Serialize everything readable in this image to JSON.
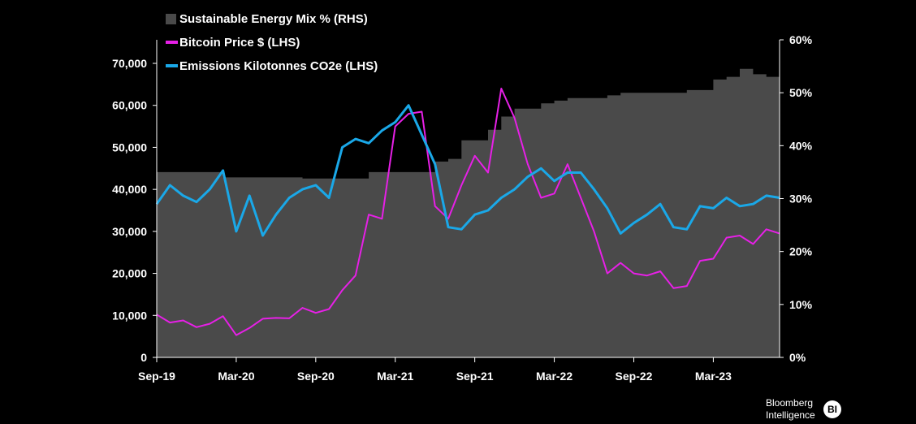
{
  "chart_data": {
    "type": "line",
    "title": "",
    "legend": [
      {
        "label": "Sustainable Energy Mix % (RHS)",
        "color": "#4a4a4a",
        "kind": "area"
      },
      {
        "label": "Bitcoin Price $ (LHS)",
        "color": "#e620e6",
        "kind": "line"
      },
      {
        "label": "Emissions Kilotonnes CO2e (LHS)",
        "color": "#1aa8e8",
        "kind": "line"
      }
    ],
    "legend_position": "top-left",
    "x_axis": {
      "start": "2019-09",
      "end": "2023-08",
      "tick_labels": [
        "Sep-19",
        "Mar-20",
        "Sep-20",
        "Mar-21",
        "Sep-21",
        "Mar-22",
        "Sep-22",
        "Mar-23"
      ]
    },
    "y_left": {
      "min": 0,
      "max": 70000,
      "tick_labels": [
        "0",
        "10,000",
        "20,000",
        "30,000",
        "40,000",
        "50,000",
        "60,000",
        "70,000"
      ]
    },
    "y_right": {
      "min": 0,
      "max": 60,
      "tick_labels": [
        "0%",
        "10%",
        "20%",
        "30%",
        "40%",
        "50%",
        "60%"
      ]
    },
    "series": [
      {
        "name": "Sustainable Energy Mix % (RHS)",
        "axis": "right",
        "color": "#4a4a4a",
        "points": [
          [
            "2019-09",
            35.0
          ],
          [
            "2019-10",
            35.0
          ],
          [
            "2019-11",
            35.0
          ],
          [
            "2019-12",
            35.0
          ],
          [
            "2020-01",
            35.0
          ],
          [
            "2020-02",
            34.0
          ],
          [
            "2020-03",
            34.0
          ],
          [
            "2020-04",
            34.0
          ],
          [
            "2020-05",
            34.0
          ],
          [
            "2020-06",
            34.0
          ],
          [
            "2020-07",
            34.0
          ],
          [
            "2020-08",
            33.8
          ],
          [
            "2020-09",
            33.8
          ],
          [
            "2020-10",
            33.8
          ],
          [
            "2020-11",
            33.8
          ],
          [
            "2020-12",
            33.8
          ],
          [
            "2021-01",
            35.0
          ],
          [
            "2021-02",
            35.0
          ],
          [
            "2021-03",
            35.0
          ],
          [
            "2021-04",
            35.0
          ],
          [
            "2021-05",
            35.0
          ],
          [
            "2021-06",
            37.0
          ],
          [
            "2021-07",
            37.5
          ],
          [
            "2021-08",
            41.0
          ],
          [
            "2021-09",
            41.0
          ],
          [
            "2021-10",
            43.0
          ],
          [
            "2021-11",
            45.5
          ],
          [
            "2021-12",
            47.0
          ],
          [
            "2022-01",
            47.0
          ],
          [
            "2022-02",
            48.0
          ],
          [
            "2022-03",
            48.5
          ],
          [
            "2022-04",
            49.0
          ],
          [
            "2022-05",
            49.0
          ],
          [
            "2022-06",
            49.0
          ],
          [
            "2022-07",
            49.5
          ],
          [
            "2022-08",
            50.0
          ],
          [
            "2022-09",
            50.0
          ],
          [
            "2022-10",
            50.0
          ],
          [
            "2022-11",
            50.0
          ],
          [
            "2022-12",
            50.0
          ],
          [
            "2023-01",
            50.5
          ],
          [
            "2023-02",
            50.5
          ],
          [
            "2023-03",
            52.5
          ],
          [
            "2023-04",
            53.0
          ],
          [
            "2023-05",
            54.5
          ],
          [
            "2023-06",
            53.5
          ],
          [
            "2023-07",
            53.0
          ],
          [
            "2023-08",
            53.0
          ]
        ]
      },
      {
        "name": "Bitcoin Price $ (LHS)",
        "axis": "left",
        "color": "#e620e6",
        "points": [
          [
            "2019-09",
            10200
          ],
          [
            "2019-10",
            8300
          ],
          [
            "2019-11",
            8800
          ],
          [
            "2019-12",
            7200
          ],
          [
            "2020-01",
            8000
          ],
          [
            "2020-02",
            9800
          ],
          [
            "2020-03",
            5300
          ],
          [
            "2020-04",
            7000
          ],
          [
            "2020-05",
            9200
          ],
          [
            "2020-06",
            9400
          ],
          [
            "2020-07",
            9300
          ],
          [
            "2020-08",
            11800
          ],
          [
            "2020-09",
            10600
          ],
          [
            "2020-10",
            11500
          ],
          [
            "2020-11",
            16000
          ],
          [
            "2020-12",
            19500
          ],
          [
            "2021-01",
            34000
          ],
          [
            "2021-02",
            33000
          ],
          [
            "2021-03",
            55000
          ],
          [
            "2021-04",
            58000
          ],
          [
            "2021-05",
            58500
          ],
          [
            "2021-06",
            36000
          ],
          [
            "2021-07",
            33000
          ],
          [
            "2021-08",
            41000
          ],
          [
            "2021-09",
            48000
          ],
          [
            "2021-10",
            44000
          ],
          [
            "2021-11",
            64000
          ],
          [
            "2021-12",
            57000
          ],
          [
            "2022-01",
            46000
          ],
          [
            "2022-02",
            38000
          ],
          [
            "2022-03",
            39000
          ],
          [
            "2022-04",
            46000
          ],
          [
            "2022-05",
            38000
          ],
          [
            "2022-06",
            30000
          ],
          [
            "2022-07",
            20000
          ],
          [
            "2022-08",
            22500
          ],
          [
            "2022-09",
            20000
          ],
          [
            "2022-10",
            19500
          ],
          [
            "2022-11",
            20500
          ],
          [
            "2022-12",
            16500
          ],
          [
            "2023-01",
            17000
          ],
          [
            "2023-02",
            23000
          ],
          [
            "2023-03",
            23500
          ],
          [
            "2023-04",
            28500
          ],
          [
            "2023-05",
            29000
          ],
          [
            "2023-06",
            27000
          ],
          [
            "2023-07",
            30500
          ],
          [
            "2023-08",
            29500
          ]
        ]
      },
      {
        "name": "Emissions Kilotonnes CO2e (LHS)",
        "axis": "left",
        "color": "#1aa8e8",
        "points": [
          [
            "2019-09",
            36500
          ],
          [
            "2019-10",
            41000
          ],
          [
            "2019-11",
            38500
          ],
          [
            "2019-12",
            37000
          ],
          [
            "2020-01",
            40000
          ],
          [
            "2020-02",
            44500
          ],
          [
            "2020-03",
            30000
          ],
          [
            "2020-04",
            38500
          ],
          [
            "2020-05",
            29000
          ],
          [
            "2020-06",
            34000
          ],
          [
            "2020-07",
            38000
          ],
          [
            "2020-08",
            40000
          ],
          [
            "2020-09",
            41000
          ],
          [
            "2020-10",
            38000
          ],
          [
            "2020-11",
            50000
          ],
          [
            "2020-12",
            52000
          ],
          [
            "2021-01",
            51000
          ],
          [
            "2021-02",
            54000
          ],
          [
            "2021-03",
            56000
          ],
          [
            "2021-04",
            60000
          ],
          [
            "2021-05",
            53000
          ],
          [
            "2021-06",
            46000
          ],
          [
            "2021-07",
            31000
          ],
          [
            "2021-08",
            30500
          ],
          [
            "2021-09",
            34000
          ],
          [
            "2021-10",
            35000
          ],
          [
            "2021-11",
            38000
          ],
          [
            "2021-12",
            40000
          ],
          [
            "2022-01",
            43000
          ],
          [
            "2022-02",
            45000
          ],
          [
            "2022-03",
            42000
          ],
          [
            "2022-04",
            44000
          ],
          [
            "2022-05",
            44000
          ],
          [
            "2022-06",
            40000
          ],
          [
            "2022-07",
            35500
          ],
          [
            "2022-08",
            29500
          ],
          [
            "2022-09",
            32000
          ],
          [
            "2022-10",
            34000
          ],
          [
            "2022-11",
            36500
          ],
          [
            "2022-12",
            31000
          ],
          [
            "2023-01",
            30500
          ],
          [
            "2023-02",
            36000
          ],
          [
            "2023-03",
            35500
          ],
          [
            "2023-04",
            38000
          ],
          [
            "2023-05",
            36000
          ],
          [
            "2023-06",
            36500
          ],
          [
            "2023-07",
            38500
          ],
          [
            "2023-08",
            38000
          ]
        ]
      }
    ]
  },
  "branding": {
    "line1": "Bloomberg",
    "line2": "Intelligence",
    "badge": "BI"
  }
}
